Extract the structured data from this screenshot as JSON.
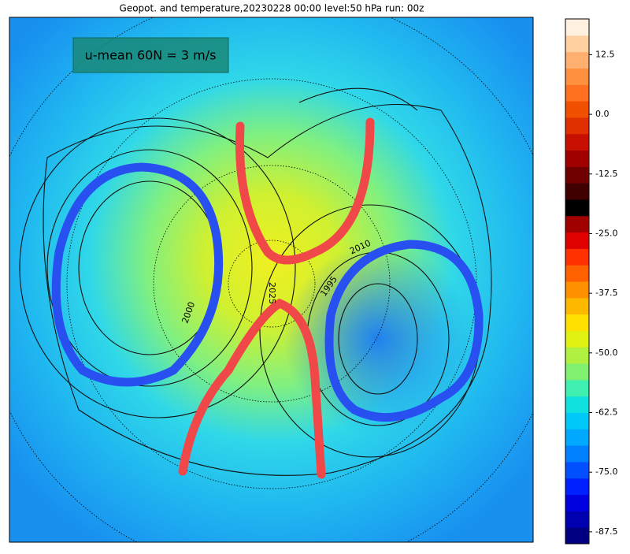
{
  "title": "Geopot. and temperature,20230228 00:00 level:50 hPa run: 00z",
  "annotation": "u-mean 60N = 3 m/s",
  "contour_labels": [
    "2010",
    "1995",
    "2025",
    "2000"
  ],
  "colorbar": {
    "lim": [
      -90,
      20
    ],
    "ticks": [
      12.5,
      {
        "value": 0,
        "label": "0.0"
      },
      -12.5,
      {
        "value": -25,
        "label": "-25.0"
      },
      -37.5,
      {
        "value": -50,
        "label": "-50.0"
      },
      -62.5,
      {
        "value": -75,
        "label": "-75.0"
      },
      -87.5
    ],
    "colors": [
      "#000080",
      "#0000b0",
      "#0000e0",
      "#0020ff",
      "#0050ff",
      "#0080ff",
      "#00a8ff",
      "#00c8f8",
      "#10e0e0",
      "#40f0b0",
      "#80f070",
      "#b0f040",
      "#e0f010",
      "#ffe000",
      "#ffb800",
      "#ff9000",
      "#ff6000",
      "#ff3000",
      "#e00000",
      "#a00000",
      "#000000",
      "#400000",
      "#700000",
      "#a00000",
      "#c81000",
      "#e03000",
      "#f05000",
      "#ff7020",
      "#ff9040",
      "#ffb070",
      "#ffd0a0",
      "#fff0e0"
    ]
  }
}
